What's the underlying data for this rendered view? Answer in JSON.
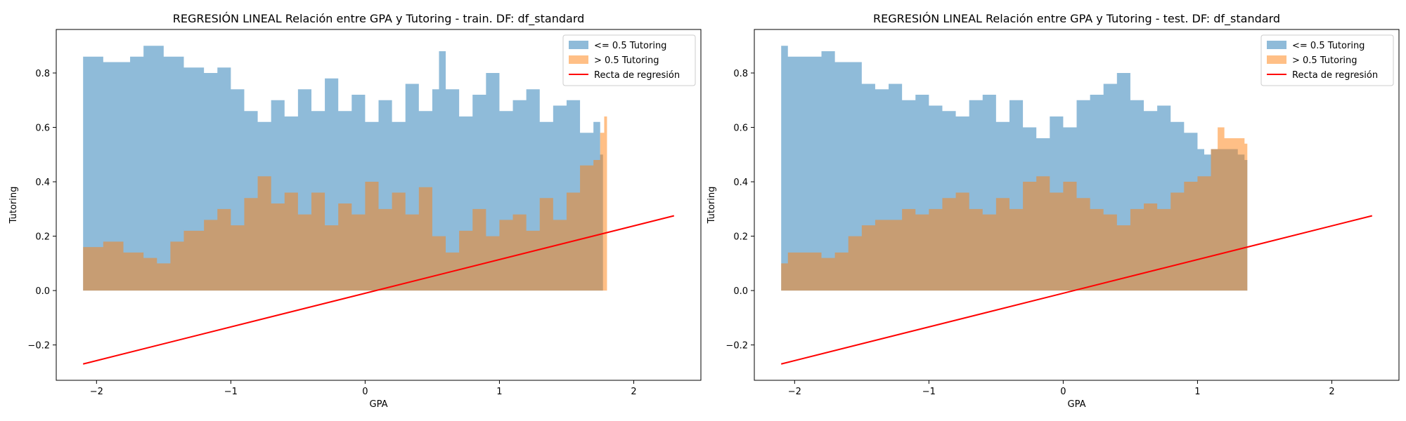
{
  "chart_data": [
    {
      "type": "area",
      "title": "REGRESIÓN LINEAL Relación entre GPA y Tutoring - train. DF: df_standard",
      "xlabel": "GPA",
      "ylabel": "Tutoring",
      "xlim": [
        -2.3,
        2.5
      ],
      "ylim": [
        -0.33,
        0.96
      ],
      "xticks": [
        -2,
        -1,
        0,
        1,
        2
      ],
      "xtick_labels": [
        "−2",
        "−1",
        "0",
        "1",
        "2"
      ],
      "yticks": [
        -0.2,
        0.0,
        0.2,
        0.4,
        0.6,
        0.8
      ],
      "ytick_labels": [
        "−0.2",
        "0.0",
        "0.2",
        "0.4",
        "0.6",
        "0.8"
      ],
      "legend_position": "top-right",
      "series": [
        {
          "name": "<= 0.5 Tutoring",
          "type": "area",
          "color": "#1f77b4",
          "alpha": 0.5,
          "x": [
            -2.1,
            -1.95,
            -1.75,
            -1.65,
            -1.5,
            -1.35,
            -1.2,
            -1.1,
            -1.0,
            -0.9,
            -0.8,
            -0.7,
            -0.6,
            -0.5,
            -0.4,
            -0.3,
            -0.2,
            -0.1,
            0.0,
            0.1,
            0.2,
            0.3,
            0.4,
            0.5,
            0.55,
            0.6,
            0.7,
            0.8,
            0.9,
            1.0,
            1.1,
            1.2,
            1.3,
            1.4,
            1.5,
            1.6,
            1.7,
            1.75
          ],
          "values": [
            0.86,
            0.84,
            0.86,
            0.9,
            0.86,
            0.82,
            0.8,
            0.82,
            0.74,
            0.66,
            0.62,
            0.7,
            0.64,
            0.74,
            0.66,
            0.78,
            0.66,
            0.72,
            0.62,
            0.7,
            0.62,
            0.76,
            0.66,
            0.74,
            0.88,
            0.74,
            0.64,
            0.72,
            0.8,
            0.66,
            0.7,
            0.74,
            0.62,
            0.68,
            0.7,
            0.58,
            0.62,
            0.5
          ]
        },
        {
          "name": "> 0.5 Tutoring",
          "type": "area",
          "color": "#ff7f0e",
          "alpha": 0.5,
          "x": [
            -2.1,
            -1.95,
            -1.8,
            -1.65,
            -1.55,
            -1.45,
            -1.35,
            -1.2,
            -1.1,
            -1.0,
            -0.9,
            -0.8,
            -0.7,
            -0.6,
            -0.5,
            -0.4,
            -0.3,
            -0.2,
            -0.1,
            0.0,
            0.1,
            0.2,
            0.3,
            0.4,
            0.5,
            0.6,
            0.7,
            0.8,
            0.9,
            1.0,
            1.1,
            1.2,
            1.3,
            1.4,
            1.5,
            1.6,
            1.7,
            1.75,
            1.78
          ],
          "values": [
            0.16,
            0.18,
            0.14,
            0.12,
            0.1,
            0.18,
            0.22,
            0.26,
            0.3,
            0.24,
            0.34,
            0.42,
            0.32,
            0.36,
            0.28,
            0.36,
            0.24,
            0.32,
            0.28,
            0.4,
            0.3,
            0.36,
            0.28,
            0.38,
            0.2,
            0.14,
            0.22,
            0.3,
            0.2,
            0.26,
            0.28,
            0.22,
            0.34,
            0.26,
            0.36,
            0.46,
            0.48,
            0.58,
            0.64
          ]
        },
        {
          "name": "Recta de regresión",
          "type": "line",
          "color": "#ff0000",
          "x": [
            -2.1,
            2.3
          ],
          "values": [
            -0.27,
            0.275
          ]
        }
      ]
    },
    {
      "type": "area",
      "title": "REGRESIÓN LINEAL Relación entre GPA y Tutoring - test. DF: df_standard",
      "xlabel": "GPA",
      "ylabel": "Tutoring",
      "xlim": [
        -2.3,
        2.5
      ],
      "ylim": [
        -0.33,
        0.96
      ],
      "xticks": [
        -2,
        -1,
        0,
        1,
        2
      ],
      "xtick_labels": [
        "−2",
        "−1",
        "0",
        "1",
        "2"
      ],
      "yticks": [
        -0.2,
        0.0,
        0.2,
        0.4,
        0.6,
        0.8
      ],
      "ytick_labels": [
        "−0.2",
        "0.0",
        "0.2",
        "0.4",
        "0.6",
        "0.8"
      ],
      "legend_position": "top-right",
      "series": [
        {
          "name": "<= 0.5 Tutoring",
          "type": "area",
          "color": "#1f77b4",
          "alpha": 0.5,
          "x": [
            -2.1,
            -2.05,
            -1.9,
            -1.8,
            -1.7,
            -1.6,
            -1.5,
            -1.4,
            -1.3,
            -1.2,
            -1.1,
            -1.0,
            -0.9,
            -0.8,
            -0.7,
            -0.6,
            -0.5,
            -0.4,
            -0.3,
            -0.2,
            -0.1,
            0.0,
            0.1,
            0.2,
            0.3,
            0.4,
            0.5,
            0.6,
            0.7,
            0.8,
            0.9,
            1.0,
            1.05,
            1.1,
            1.2,
            1.3,
            1.35
          ],
          "values": [
            0.9,
            0.86,
            0.86,
            0.88,
            0.84,
            0.84,
            0.76,
            0.74,
            0.76,
            0.7,
            0.72,
            0.68,
            0.66,
            0.64,
            0.7,
            0.72,
            0.62,
            0.7,
            0.6,
            0.56,
            0.64,
            0.6,
            0.7,
            0.72,
            0.76,
            0.8,
            0.7,
            0.66,
            0.68,
            0.62,
            0.58,
            0.52,
            0.5,
            0.52,
            0.52,
            0.5,
            0.48
          ]
        },
        {
          "name": "> 0.5 Tutoring",
          "type": "area",
          "color": "#ff7f0e",
          "alpha": 0.5,
          "x": [
            -2.1,
            -2.05,
            -1.9,
            -1.8,
            -1.7,
            -1.6,
            -1.5,
            -1.4,
            -1.3,
            -1.2,
            -1.1,
            -1.0,
            -0.9,
            -0.8,
            -0.7,
            -0.6,
            -0.5,
            -0.4,
            -0.3,
            -0.2,
            -0.1,
            0.0,
            0.1,
            0.2,
            0.3,
            0.4,
            0.5,
            0.6,
            0.7,
            0.8,
            0.9,
            1.0,
            1.1,
            1.15,
            1.2,
            1.3,
            1.35
          ],
          "values": [
            0.1,
            0.14,
            0.14,
            0.12,
            0.14,
            0.2,
            0.24,
            0.26,
            0.26,
            0.3,
            0.28,
            0.3,
            0.34,
            0.36,
            0.3,
            0.28,
            0.34,
            0.3,
            0.4,
            0.42,
            0.36,
            0.4,
            0.34,
            0.3,
            0.28,
            0.24,
            0.3,
            0.32,
            0.3,
            0.36,
            0.4,
            0.42,
            0.52,
            0.6,
            0.56,
            0.56,
            0.54
          ]
        },
        {
          "name": "Recta de regresión",
          "type": "line",
          "color": "#ff0000",
          "x": [
            -2.1,
            2.3
          ],
          "values": [
            -0.27,
            0.275
          ]
        }
      ]
    }
  ]
}
